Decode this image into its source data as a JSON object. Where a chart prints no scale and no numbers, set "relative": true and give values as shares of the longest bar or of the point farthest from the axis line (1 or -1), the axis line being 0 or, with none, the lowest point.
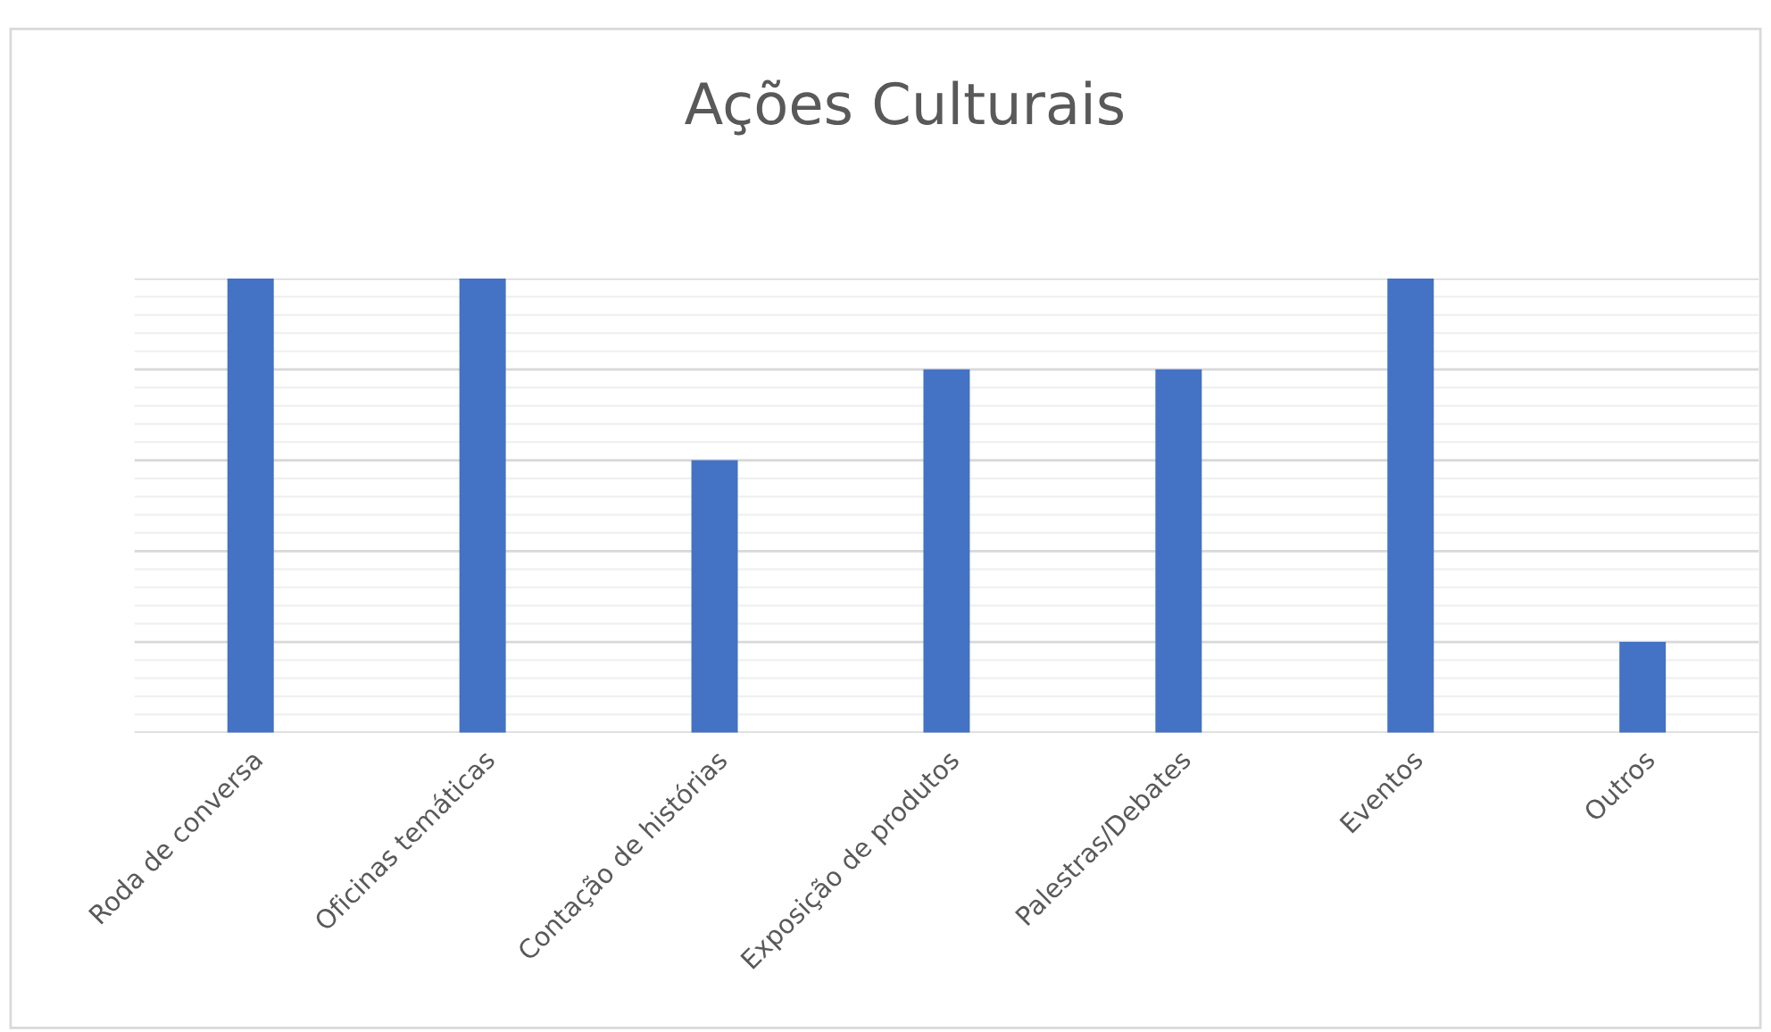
{
  "chart_data": {
    "type": "bar",
    "title": "Ações Culturais",
    "relative": true,
    "categories": [
      "Roda de conversa",
      "Oficinas temáticas",
      "Contação de histórias",
      "Exposição de produtos",
      "Palestras/Debates",
      "Eventos",
      "Outros"
    ],
    "values": [
      1,
      1,
      0.6,
      0.8,
      0.8,
      1,
      0.2
    ],
    "color": "#4472c4",
    "grid": "y",
    "tick_labels": "x"
  }
}
